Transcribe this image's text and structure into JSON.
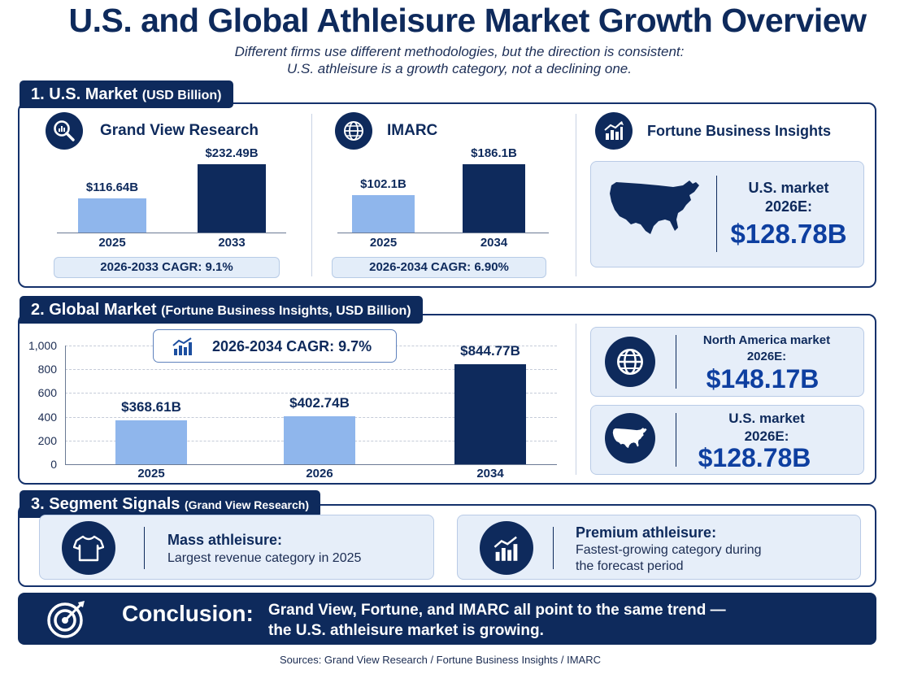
{
  "header": {
    "title": "U.S. and Global Athleisure Market Growth Overview",
    "subtitle_line1": "Different firms use different methodologies, but the direction is consistent:",
    "subtitle_line2": "U.S. athleisure is a growth category, not a declining one."
  },
  "section1": {
    "tab_main": "1. U.S. Market",
    "tab_sub": "(USD Billion)",
    "sources": [
      {
        "name": "Grand View Research",
        "icon": "magnifier-chart-icon"
      },
      {
        "name": "IMARC",
        "icon": "globe-icon"
      },
      {
        "name": "Fortune Business Insights",
        "icon": "growth-chart-icon"
      }
    ],
    "fbi_line1": "U.S. market",
    "fbi_line2": "2026E:",
    "fbi_value": "$128.78B"
  },
  "section2": {
    "tab_main": "2. Global Market",
    "tab_sub": "(Fortune Business Insights, USD Billion)",
    "cagr": "2026-2034 CAGR: 9.7%",
    "na_line1": "North America market",
    "na_line2": "2026E:",
    "na_value": "$148.17B",
    "us_line1": "U.S. market",
    "us_line2": "2026E:",
    "us_value": "$128.78B"
  },
  "section3": {
    "tab_main": "3. Segment Signals",
    "tab_sub": "(Grand View Research)",
    "mass_title": "Mass athleisure:",
    "mass_desc": "Largest revenue category in 2025",
    "premium_title": "Premium athleisure:",
    "premium_desc_line1": "Fastest-growing category during",
    "premium_desc_line2": "the forecast period"
  },
  "conclusion": {
    "label": "Conclusion:",
    "line1": "Grand View, Fortune, and IMARC all point to the same trend —",
    "line2": "the U.S. athleisure market is growing."
  },
  "sources_line": "Sources:  Grand View Research / Fortune Business Insights / IMARC",
  "colors": {
    "navy": "#0e2a5c",
    "light_bar": "#8fb6ec",
    "panel_bg": "#e6eef9",
    "accent_num": "#0e3fa0"
  },
  "chart_data": [
    {
      "type": "bar",
      "title": "Grand View Research",
      "categories": [
        "2025",
        "2033"
      ],
      "values": [
        116.64,
        232.49
      ],
      "data_labels": [
        "$116.64B",
        "$232.49B"
      ],
      "cagr": "2026-2033 CAGR: 9.1%"
    },
    {
      "type": "bar",
      "title": "IMARC",
      "categories": [
        "2025",
        "2034"
      ],
      "values": [
        102.1,
        186.1
      ],
      "data_labels": [
        "$102.1B",
        "$186.1B"
      ],
      "cagr": "2026-2034 CAGR: 6.90%"
    },
    {
      "type": "bar",
      "title": "2. Global Market (Fortune Business Insights, USD Billion)",
      "categories": [
        "2025",
        "2026",
        "2034"
      ],
      "values": [
        368.61,
        402.74,
        844.77
      ],
      "data_labels": [
        "$368.61B",
        "$402.74B",
        "$844.77B"
      ],
      "yticks": [
        "0",
        "200",
        "400",
        "600",
        "800",
        "1,000"
      ],
      "ylim": [
        0,
        1000
      ],
      "grid": true
    }
  ]
}
